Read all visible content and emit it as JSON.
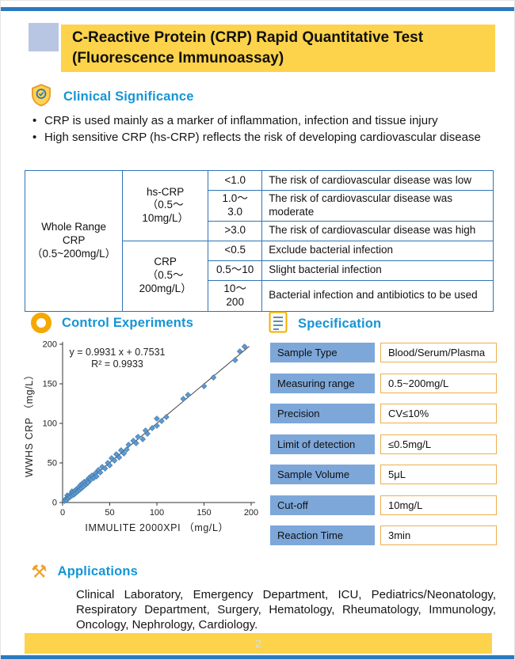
{
  "page": {
    "title_line1": "C-Reactive Protein (CRP) Rapid Quantitative Test",
    "title_line2": "(Fluorescence Immunoassay)",
    "page_number": "2"
  },
  "icons": {
    "applications_gavel": "⚒"
  },
  "clinical": {
    "heading": "Clinical Significance",
    "bullets": [
      "CRP is used mainly as a marker of inflammation, infection and tissue injury",
      "High sensitive CRP (hs-CRP) reflects the risk of developing cardiovascular disease"
    ],
    "table": {
      "row_header": {
        "l1": "Whole Range",
        "l2": "CRP",
        "l3": "（0.5~200mg/L）"
      },
      "groups": [
        {
          "name": "hs-CRP",
          "range": "（0.5～10mg/L）",
          "rows": [
            {
              "value": "<1.0",
              "desc": "The risk of cardiovascular disease was low"
            },
            {
              "value": "1.0～3.0",
              "desc": "The risk of cardiovascular disease was moderate"
            },
            {
              "value": ">3.0",
              "desc": "The risk of cardiovascular disease was high"
            }
          ]
        },
        {
          "name": "CRP",
          "range": "（0.5～200mg/L）",
          "rows": [
            {
              "value": "<0.5",
              "desc": "Exclude bacterial infection"
            },
            {
              "value": "0.5～10",
              "desc": "Slight bacterial infection"
            },
            {
              "value": "10～200",
              "desc": "Bacterial infection and antibiotics to be used"
            }
          ]
        }
      ]
    }
  },
  "control": {
    "heading": "Control Experiments"
  },
  "chart_data": {
    "type": "scatter",
    "title": "",
    "xlabel": "IMMULITE  2000XPI  （mg/L）",
    "ylabel": "WWHS  CRP  （mg/L）",
    "xlim": [
      0,
      200
    ],
    "ylim": [
      0,
      200
    ],
    "xticks": [
      0,
      50,
      100,
      150,
      200
    ],
    "yticks": [
      0,
      50,
      100,
      150,
      200
    ],
    "grid": false,
    "legend": "none",
    "annotation_line1": "y = 0.9931 x + 0.7531",
    "annotation_line2": "R² = 0.9933",
    "regression": {
      "slope": 0.9931,
      "intercept": 0.7531
    },
    "point_color": "#5B9BD5",
    "points": [
      [
        2,
        2
      ],
      [
        3,
        4
      ],
      [
        4,
        3
      ],
      [
        5,
        6
      ],
      [
        5,
        9
      ],
      [
        6,
        5
      ],
      [
        7,
        8
      ],
      [
        8,
        7
      ],
      [
        9,
        11
      ],
      [
        10,
        9
      ],
      [
        10,
        14
      ],
      [
        11,
        12
      ],
      [
        12,
        10
      ],
      [
        13,
        15
      ],
      [
        14,
        12
      ],
      [
        15,
        17
      ],
      [
        16,
        14
      ],
      [
        17,
        19
      ],
      [
        18,
        16
      ],
      [
        19,
        22
      ],
      [
        20,
        18
      ],
      [
        21,
        24
      ],
      [
        22,
        20
      ],
      [
        23,
        26
      ],
      [
        25,
        23
      ],
      [
        26,
        28
      ],
      [
        27,
        25
      ],
      [
        28,
        31
      ],
      [
        30,
        29
      ],
      [
        31,
        34
      ],
      [
        33,
        31
      ],
      [
        35,
        37
      ],
      [
        36,
        33
      ],
      [
        38,
        41
      ],
      [
        40,
        38
      ],
      [
        42,
        45
      ],
      [
        45,
        43
      ],
      [
        48,
        50
      ],
      [
        50,
        47
      ],
      [
        52,
        56
      ],
      [
        55,
        53
      ],
      [
        57,
        61
      ],
      [
        60,
        57
      ],
      [
        62,
        66
      ],
      [
        65,
        62
      ],
      [
        68,
        67
      ],
      [
        70,
        73
      ],
      [
        75,
        78
      ],
      [
        78,
        75
      ],
      [
        80,
        83
      ],
      [
        85,
        80
      ],
      [
        88,
        91
      ],
      [
        90,
        87
      ],
      [
        95,
        94
      ],
      [
        100,
        97
      ],
      [
        100,
        106
      ],
      [
        105,
        103
      ],
      [
        110,
        108
      ],
      [
        128,
        131
      ],
      [
        133,
        136
      ],
      [
        150,
        147
      ],
      [
        160,
        158
      ],
      [
        183,
        180
      ],
      [
        188,
        191
      ],
      [
        193,
        197
      ]
    ]
  },
  "specification": {
    "heading": "Specification",
    "rows": [
      {
        "label": "Sample Type",
        "value": "Blood/Serum/Plasma"
      },
      {
        "label": "Measuring range",
        "value": "0.5~200mg/L"
      },
      {
        "label": "Precision",
        "value": "CV≤10%"
      },
      {
        "label": "Limit of detection",
        "value": "≤0.5mg/L"
      },
      {
        "label": "Sample Volume",
        "value": "5μL"
      },
      {
        "label": "Cut-off",
        "value": "10mg/L"
      },
      {
        "label": "Reaction Time",
        "value": "3min"
      }
    ]
  },
  "applications": {
    "heading": "Applications",
    "text": "Clinical Laboratory, Emergency Department, ICU, Pediatrics/Neonatology, Respiratory Department, Surgery, Hematology, Rheumatology, Immunology, Oncology, Nephrology, Cardiology."
  }
}
